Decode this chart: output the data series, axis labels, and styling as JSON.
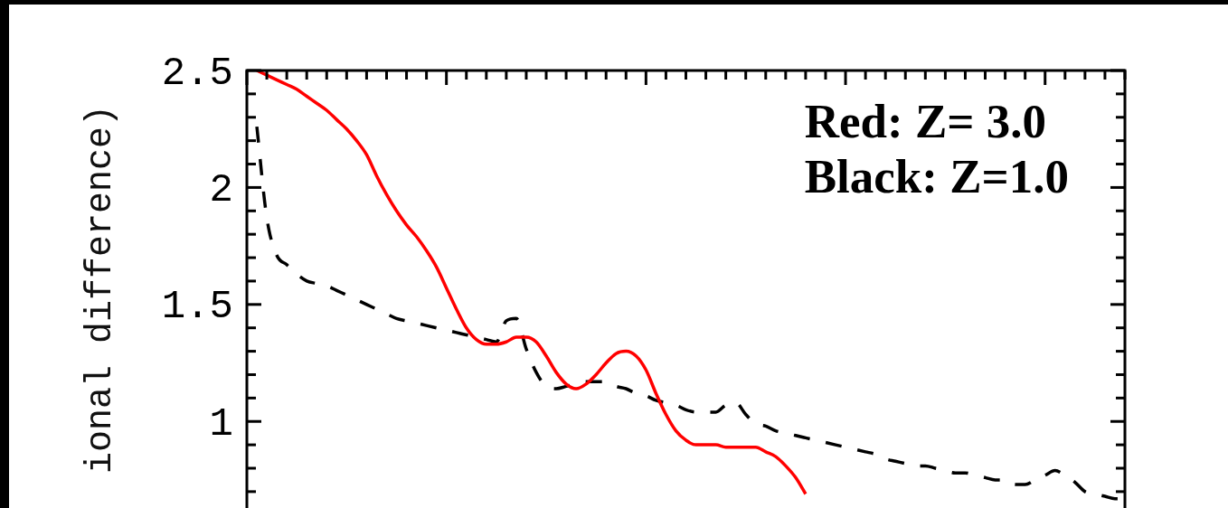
{
  "chart_data": {
    "type": "line",
    "ylabel": "ional difference)",
    "categories": [
      null,
      null,
      null,
      null,
      null,
      null,
      null,
      null,
      null,
      null,
      null,
      null,
      null,
      null,
      null,
      null,
      null,
      null,
      null,
      null,
      null,
      null,
      null,
      null,
      null,
      null,
      null,
      null,
      null,
      null,
      null,
      null,
      null,
      null,
      null,
      null,
      null,
      null,
      null,
      null,
      null,
      null,
      null,
      null,
      null,
      null,
      null,
      null,
      null,
      null,
      null,
      null,
      null,
      null,
      null,
      null,
      null,
      null,
      null,
      null,
      null,
      null,
      null,
      null,
      null,
      null,
      null,
      null,
      null,
      null,
      null,
      null,
      null,
      null,
      null,
      null,
      null,
      null,
      null,
      null,
      null,
      null,
      null,
      null,
      null,
      null,
      null,
      null,
      null
    ],
    "series": [
      {
        "color": "#ff0000",
        "values": [
          null,
          2.5,
          2.48,
          2.46,
          2.44,
          2.42,
          2.39,
          2.36,
          2.33,
          2.29,
          2.25,
          2.2,
          2.14,
          2.05,
          1.97,
          1.9,
          1.84,
          1.79,
          1.73,
          1.66,
          1.57,
          1.48,
          1.4,
          1.35,
          1.33,
          1.33,
          1.34,
          1.36,
          1.36,
          1.34,
          1.28,
          1.21,
          1.16,
          1.14,
          1.16,
          1.2,
          1.25,
          1.29,
          1.3,
          1.28,
          1.22,
          1.12,
          1.03,
          0.96,
          0.92,
          0.9,
          0.9,
          0.9,
          0.89,
          0.89,
          0.89,
          0.89,
          0.87,
          0.85,
          0.81,
          0.76,
          0.69,
          null,
          null,
          null,
          null,
          null,
          null,
          null,
          null,
          null,
          null,
          null,
          null,
          null,
          null,
          null,
          null,
          null,
          null,
          null,
          null,
          null,
          null,
          null,
          null,
          null,
          null,
          null,
          null,
          null,
          null,
          null,
          null
        ]
      },
      {
        "color": "#000000",
        "line_style": "dashed",
        "values": [
          null,
          2.26,
          1.87,
          1.71,
          1.67,
          1.63,
          1.6,
          1.59,
          1.58,
          1.56,
          1.54,
          1.52,
          1.5,
          1.48,
          1.46,
          1.44,
          1.43,
          1.42,
          1.41,
          1.4,
          1.39,
          1.38,
          1.37,
          1.36,
          1.35,
          1.34,
          1.43,
          1.44,
          1.31,
          1.21,
          1.15,
          1.14,
          1.15,
          1.16,
          1.17,
          1.17,
          1.17,
          1.15,
          1.14,
          1.12,
          1.11,
          1.09,
          1.08,
          1.07,
          1.05,
          1.04,
          1.04,
          1.04,
          1.07,
          1.08,
          1.03,
          0.99,
          0.98,
          0.96,
          0.95,
          0.94,
          0.93,
          0.92,
          0.91,
          0.9,
          0.89,
          0.88,
          0.87,
          0.86,
          0.84,
          0.83,
          0.82,
          0.81,
          0.81,
          0.8,
          0.79,
          0.78,
          0.78,
          0.77,
          0.76,
          0.75,
          0.75,
          0.73,
          0.73,
          0.75,
          0.77,
          0.79,
          0.77,
          0.74,
          0.7,
          0.69,
          0.68,
          0.67,
          0.67
        ]
      }
    ],
    "ylim": [
      0.63,
      2.5
    ],
    "yticks": [
      {
        "value": 0.7,
        "label": null
      },
      {
        "value": 0.8,
        "label": null
      },
      {
        "value": 0.9,
        "label": null
      },
      1,
      {
        "value": 1.1,
        "label": null
      },
      {
        "value": 1.2,
        "label": null
      },
      {
        "value": 1.3,
        "label": null
      },
      {
        "value": 1.4,
        "label": null
      },
      1.5,
      {
        "value": 1.6,
        "label": null
      },
      {
        "value": 1.7,
        "label": null
      },
      {
        "value": 1.8,
        "label": null
      },
      {
        "value": 1.9,
        "label": null
      },
      2,
      {
        "value": 2.1,
        "label": null
      },
      {
        "value": 2.2,
        "label": null
      },
      {
        "value": 2.3,
        "label": null
      },
      {
        "value": 2.4,
        "label": null
      },
      2.5
    ],
    "annotations": [
      "Red: Z= 3.0",
      "Black: Z=1.0"
    ]
  }
}
